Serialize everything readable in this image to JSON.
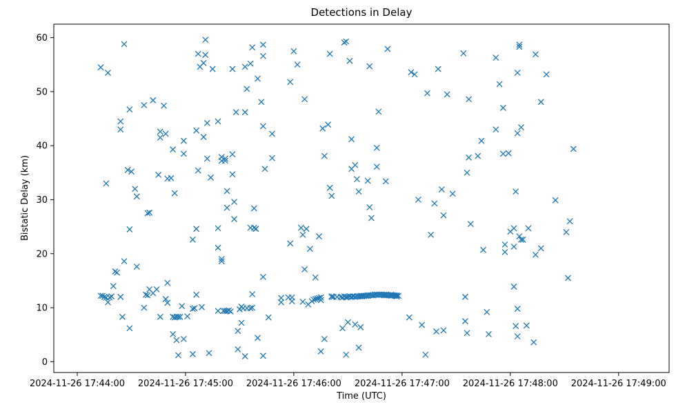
{
  "chart_data": {
    "type": "scatter",
    "title": "Detections in Delay",
    "xlabel": "Time (UTC)",
    "ylabel": "Bistatic Delay (km)",
    "x_ticks": [
      {
        "time": "17:44:00",
        "label": "2024-11-26 17:44:00"
      },
      {
        "time": "17:45:00",
        "label": "2024-11-26 17:45:00"
      },
      {
        "time": "17:46:00",
        "label": "2024-11-26 17:46:00"
      },
      {
        "time": "17:47:00",
        "label": "2024-11-26 17:47:00"
      },
      {
        "time": "17:48:00",
        "label": "2024-11-26 17:48:00"
      },
      {
        "time": "17:49:00",
        "label": "2024-11-26 17:49:00"
      }
    ],
    "xlim": [
      "17:43:47",
      "17:49:28"
    ],
    "y_ticks": [
      0,
      10,
      20,
      30,
      40,
      50,
      60
    ],
    "ylim": [
      -2.0,
      62.5
    ],
    "grid": false,
    "marker": "x",
    "color": "#1f77b4",
    "x_unit": "time of day",
    "points": [
      [
        "17:44:13",
        54.5
      ],
      [
        "17:44:13",
        12.2
      ],
      [
        "17:44:14",
        12.2
      ],
      [
        "17:44:15",
        12.0
      ],
      [
        "17:44:16",
        33.0
      ],
      [
        "17:44:16",
        11.9
      ],
      [
        "17:44:17",
        11.0
      ],
      [
        "17:44:17",
        53.5
      ],
      [
        "17:44:18",
        11.9
      ],
      [
        "17:44:19",
        12.1
      ],
      [
        "17:44:20",
        14.0
      ],
      [
        "17:44:21",
        16.7
      ],
      [
        "17:44:22",
        16.5
      ],
      [
        "17:44:24",
        43.0
      ],
      [
        "17:44:24",
        44.5
      ],
      [
        "17:44:24",
        12.0
      ],
      [
        "17:44:25",
        8.3
      ],
      [
        "17:44:26",
        18.6
      ],
      [
        "17:44:26",
        58.8
      ],
      [
        "17:44:28",
        35.5
      ],
      [
        "17:44:29",
        24.5
      ],
      [
        "17:44:29",
        46.7
      ],
      [
        "17:44:29",
        6.2
      ],
      [
        "17:44:30",
        35.2
      ],
      [
        "17:44:32",
        32.0
      ],
      [
        "17:44:33",
        17.6
      ],
      [
        "17:44:33",
        30.6
      ],
      [
        "17:44:37",
        10.0
      ],
      [
        "17:44:37",
        47.5
      ],
      [
        "17:44:38",
        12.4
      ],
      [
        "17:44:39",
        12.3
      ],
      [
        "17:44:39",
        27.5
      ],
      [
        "17:44:40",
        27.6
      ],
      [
        "17:44:40",
        13.4
      ],
      [
        "17:44:42",
        48.4
      ],
      [
        "17:44:42",
        12.7
      ],
      [
        "17:44:44",
        13.4
      ],
      [
        "17:44:45",
        34.6
      ],
      [
        "17:44:46",
        42.6
      ],
      [
        "17:44:46",
        41.5
      ],
      [
        "17:44:46",
        8.3
      ],
      [
        "17:44:48",
        47.4
      ],
      [
        "17:44:49",
        42.2
      ],
      [
        "17:44:49",
        11.6
      ],
      [
        "17:44:50",
        10.9
      ],
      [
        "17:44:50",
        14.6
      ],
      [
        "17:44:50",
        33.9
      ],
      [
        "17:44:52",
        34.0
      ],
      [
        "17:44:53",
        39.3
      ],
      [
        "17:44:53",
        5.1
      ],
      [
        "17:44:53",
        8.3
      ],
      [
        "17:44:54",
        8.2
      ],
      [
        "17:44:54",
        31.2
      ],
      [
        "17:44:55",
        4.0
      ],
      [
        "17:44:55",
        8.3
      ],
      [
        "17:44:56",
        8.3
      ],
      [
        "17:44:56",
        1.2
      ],
      [
        "17:44:57",
        8.3
      ],
      [
        "17:44:58",
        10.3
      ],
      [
        "17:44:59",
        4.2
      ],
      [
        "17:44:59",
        38.5
      ],
      [
        "17:44:59",
        40.9
      ],
      [
        "17:45:01",
        8.4
      ],
      [
        "17:45:04",
        22.6
      ],
      [
        "17:45:04",
        9.8
      ],
      [
        "17:45:04",
        1.4
      ],
      [
        "17:45:05",
        9.9
      ],
      [
        "17:45:06",
        24.6
      ],
      [
        "17:45:06",
        42.8
      ],
      [
        "17:45:06",
        12.4
      ],
      [
        "17:45:07",
        35.4
      ],
      [
        "17:45:07",
        57.0
      ],
      [
        "17:45:08",
        54.6
      ],
      [
        "17:45:09",
        10.1
      ],
      [
        "17:45:10",
        41.6
      ],
      [
        "17:45:10",
        55.3
      ],
      [
        "17:45:11",
        56.8
      ],
      [
        "17:45:11",
        59.6
      ],
      [
        "17:45:12",
        44.2
      ],
      [
        "17:45:12",
        37.6
      ],
      [
        "17:45:13",
        1.6
      ],
      [
        "17:45:14",
        34.1
      ],
      [
        "17:45:15",
        54.2
      ],
      [
        "17:45:18",
        44.5
      ],
      [
        "17:45:18",
        24.7
      ],
      [
        "17:45:18",
        21.1
      ],
      [
        "17:45:18",
        9.4
      ],
      [
        "17:45:20",
        19.0
      ],
      [
        "17:45:20",
        18.6
      ],
      [
        "17:45:20",
        37.9
      ],
      [
        "17:45:20",
        37.2
      ],
      [
        "17:45:21",
        9.4
      ],
      [
        "17:45:22",
        9.4
      ],
      [
        "17:45:22",
        37.6
      ],
      [
        "17:45:22",
        37.2
      ],
      [
        "17:45:23",
        9.4
      ],
      [
        "17:45:23",
        31.6
      ],
      [
        "17:45:23",
        28.5
      ],
      [
        "17:45:24",
        9.5
      ],
      [
        "17:45:25",
        9.3
      ],
      [
        "17:45:26",
        54.2
      ],
      [
        "17:45:26",
        38.4
      ],
      [
        "17:45:26",
        34.7
      ],
      [
        "17:45:27",
        29.6
      ],
      [
        "17:45:27",
        26.4
      ],
      [
        "17:45:28",
        46.2
      ],
      [
        "17:45:29",
        2.3
      ],
      [
        "17:45:29",
        5.7
      ],
      [
        "17:45:30",
        9.7
      ],
      [
        "17:45:31",
        10.2
      ],
      [
        "17:45:31",
        7.2
      ],
      [
        "17:45:32",
        9.9
      ],
      [
        "17:45:33",
        46.2
      ],
      [
        "17:45:33",
        54.6
      ],
      [
        "17:45:33",
        1.0
      ],
      [
        "17:45:34",
        50.5
      ],
      [
        "17:45:34",
        9.9
      ],
      [
        "17:45:36",
        55.2
      ],
      [
        "17:45:36",
        24.8
      ],
      [
        "17:45:36",
        9.9
      ],
      [
        "17:45:37",
        10.0
      ],
      [
        "17:45:37",
        12.5
      ],
      [
        "17:45:37",
        58.2
      ],
      [
        "17:45:38",
        24.8
      ],
      [
        "17:45:38",
        28.4
      ],
      [
        "17:45:39",
        24.6
      ],
      [
        "17:45:39",
        24.6
      ],
      [
        "17:45:40",
        4.4
      ],
      [
        "17:45:40",
        52.4
      ],
      [
        "17:45:42",
        48.1
      ],
      [
        "17:45:43",
        56.6
      ],
      [
        "17:45:43",
        58.7
      ],
      [
        "17:45:43",
        43.6
      ],
      [
        "17:45:43",
        15.7
      ],
      [
        "17:45:43",
        1.1
      ],
      [
        "17:45:44",
        35.7
      ],
      [
        "17:45:46",
        8.2
      ],
      [
        "17:45:48",
        42.2
      ],
      [
        "17:45:48",
        37.7
      ],
      [
        "17:45:53",
        11.0
      ],
      [
        "17:45:53",
        11.8
      ],
      [
        "17:45:57",
        11.9
      ],
      [
        "17:45:58",
        21.9
      ],
      [
        "17:45:58",
        51.8
      ],
      [
        "17:45:59",
        11.9
      ],
      [
        "17:45:59",
        11.2
      ],
      [
        "17:46:00",
        57.5
      ],
      [
        "17:46:02",
        55.0
      ],
      [
        "17:46:04",
        24.8
      ],
      [
        "17:46:05",
        11.1
      ],
      [
        "17:46:05",
        23.5
      ],
      [
        "17:46:06",
        48.6
      ],
      [
        "17:46:06",
        17.1
      ],
      [
        "17:46:07",
        24.6
      ],
      [
        "17:46:08",
        10.6
      ],
      [
        "17:46:09",
        20.9
      ],
      [
        "17:46:10",
        11.2
      ],
      [
        "17:46:11",
        11.5
      ],
      [
        "17:46:12",
        15.6
      ],
      [
        "17:46:12",
        11.6
      ],
      [
        "17:46:13",
        11.7
      ],
      [
        "17:46:14",
        23.2
      ],
      [
        "17:46:14",
        11.8
      ],
      [
        "17:46:15",
        1.9
      ],
      [
        "17:46:15",
        11.9
      ],
      [
        "17:46:15",
        11.4
      ],
      [
        "17:46:16",
        43.2
      ],
      [
        "17:46:17",
        38.1
      ],
      [
        "17:46:17",
        4.2
      ],
      [
        "17:46:19",
        43.9
      ],
      [
        "17:46:20",
        57.0
      ],
      [
        "17:46:20",
        32.2
      ],
      [
        "17:46:21",
        30.7
      ],
      [
        "17:46:21",
        12.0
      ],
      [
        "17:46:21",
        12.1
      ],
      [
        "17:46:22",
        12.0
      ],
      [
        "17:46:24",
        12.0
      ],
      [
        "17:46:26",
        12.0
      ],
      [
        "17:46:27",
        6.2
      ],
      [
        "17:46:27",
        11.9
      ],
      [
        "17:46:28",
        59.1
      ],
      [
        "17:46:28",
        12.1
      ],
      [
        "17:46:29",
        59.3
      ],
      [
        "17:46:29",
        1.3
      ],
      [
        "17:46:29",
        11.9
      ],
      [
        "17:46:29",
        12.0
      ],
      [
        "17:46:30",
        12.0
      ],
      [
        "17:46:30",
        7.3
      ],
      [
        "17:46:31",
        12.1
      ],
      [
        "17:46:31",
        55.7
      ],
      [
        "17:46:32",
        12.0
      ],
      [
        "17:46:32",
        41.2
      ],
      [
        "17:46:32",
        35.7
      ],
      [
        "17:46:33",
        12.1
      ],
      [
        "17:46:33",
        12.1
      ],
      [
        "17:46:34",
        36.4
      ],
      [
        "17:46:34",
        12.0
      ],
      [
        "17:46:34",
        6.9
      ],
      [
        "17:46:35",
        12.1
      ],
      [
        "17:46:35",
        33.8
      ],
      [
        "17:46:35",
        12.1
      ],
      [
        "17:46:36",
        12.1
      ],
      [
        "17:46:36",
        31.5
      ],
      [
        "17:46:36",
        2.6
      ],
      [
        "17:46:37",
        12.2
      ],
      [
        "17:46:37",
        12.1
      ],
      [
        "17:46:37",
        6.4
      ],
      [
        "17:46:38",
        12.2
      ],
      [
        "17:46:38",
        12.1
      ],
      [
        "17:46:39",
        12.2
      ],
      [
        "17:46:39",
        12.2
      ],
      [
        "17:46:40",
        12.2
      ],
      [
        "17:46:40",
        12.2
      ],
      [
        "17:46:41",
        12.3
      ],
      [
        "17:46:41",
        12.2
      ],
      [
        "17:46:41",
        33.5
      ],
      [
        "17:46:42",
        12.3
      ],
      [
        "17:46:42",
        54.7
      ],
      [
        "17:46:42",
        28.6
      ],
      [
        "17:46:43",
        12.3
      ],
      [
        "17:46:43",
        26.6
      ],
      [
        "17:46:43",
        12.3
      ],
      [
        "17:46:44",
        12.3
      ],
      [
        "17:46:44",
        12.3
      ],
      [
        "17:46:45",
        12.4
      ],
      [
        "17:46:45",
        12.4
      ],
      [
        "17:46:46",
        12.4
      ],
      [
        "17:46:46",
        12.4
      ],
      [
        "17:46:46",
        36.1
      ],
      [
        "17:46:46",
        39.6
      ],
      [
        "17:46:47",
        46.3
      ],
      [
        "17:46:47",
        12.4
      ],
      [
        "17:46:47",
        12.4
      ],
      [
        "17:46:48",
        12.4
      ],
      [
        "17:46:48",
        12.4
      ],
      [
        "17:46:49",
        12.4
      ],
      [
        "17:46:49",
        12.4
      ],
      [
        "17:46:50",
        12.4
      ],
      [
        "17:46:50",
        12.3
      ],
      [
        "17:46:51",
        33.4
      ],
      [
        "17:46:51",
        12.4
      ],
      [
        "17:46:51",
        12.3
      ],
      [
        "17:46:52",
        57.9
      ],
      [
        "17:46:52",
        12.3
      ],
      [
        "17:46:52",
        12.3
      ],
      [
        "17:46:53",
        12.3
      ],
      [
        "17:46:54",
        12.4
      ],
      [
        "17:46:54",
        12.2
      ],
      [
        "17:46:55",
        12.3
      ],
      [
        "17:46:55",
        12.3
      ],
      [
        "17:46:56",
        12.3
      ],
      [
        "17:46:56",
        12.2
      ],
      [
        "17:46:57",
        12.3
      ],
      [
        "17:46:57",
        12.2
      ],
      [
        "17:46:57",
        12.1
      ],
      [
        "17:46:58",
        12.2
      ],
      [
        "17:47:04",
        8.2
      ],
      [
        "17:47:05",
        53.6
      ],
      [
        "17:47:07",
        53.2
      ],
      [
        "17:47:09",
        30.0
      ],
      [
        "17:47:11",
        6.8
      ],
      [
        "17:47:13",
        1.3
      ],
      [
        "17:47:14",
        49.7
      ],
      [
        "17:47:16",
        23.5
      ],
      [
        "17:47:18",
        29.3
      ],
      [
        "17:47:19",
        5.6
      ],
      [
        "17:47:20",
        54.2
      ],
      [
        "17:47:22",
        31.9
      ],
      [
        "17:47:23",
        5.8
      ],
      [
        "17:47:23",
        27.1
      ],
      [
        "17:47:25",
        49.5
      ],
      [
        "17:47:28",
        31.1
      ],
      [
        "17:47:34",
        57.1
      ],
      [
        "17:47:35",
        12.0
      ],
      [
        "17:47:35",
        7.5
      ],
      [
        "17:47:36",
        5.3
      ],
      [
        "17:47:36",
        35.0
      ],
      [
        "17:47:37",
        48.6
      ],
      [
        "17:47:37",
        37.8
      ],
      [
        "17:47:38",
        25.5
      ],
      [
        "17:47:42",
        38.1
      ],
      [
        "17:47:44",
        40.9
      ],
      [
        "17:47:45",
        20.7
      ],
      [
        "17:47:47",
        9.2
      ],
      [
        "17:47:48",
        5.1
      ],
      [
        "17:47:52",
        43.0
      ],
      [
        "17:47:52",
        56.3
      ],
      [
        "17:47:54",
        51.4
      ],
      [
        "17:47:56",
        47.0
      ],
      [
        "17:47:56",
        38.5
      ],
      [
        "17:47:57",
        21.7
      ],
      [
        "17:47:57",
        20.3
      ],
      [
        "17:47:59",
        38.6
      ],
      [
        "17:48:00",
        24.1
      ],
      [
        "17:48:02",
        24.7
      ],
      [
        "17:48:02",
        21.3
      ],
      [
        "17:48:02",
        13.9
      ],
      [
        "17:48:03",
        6.6
      ],
      [
        "17:48:03",
        31.5
      ],
      [
        "17:48:04",
        53.5
      ],
      [
        "17:48:04",
        42.3
      ],
      [
        "17:48:04",
        9.8
      ],
      [
        "17:48:04",
        4.7
      ],
      [
        "17:48:05",
        58.3
      ],
      [
        "17:48:05",
        58.7
      ],
      [
        "17:48:05",
        23.2
      ],
      [
        "17:48:06",
        43.4
      ],
      [
        "17:48:06",
        22.6
      ],
      [
        "17:48:07",
        22.6
      ],
      [
        "17:48:09",
        6.7
      ],
      [
        "17:48:10",
        24.7
      ],
      [
        "17:48:13",
        3.6
      ],
      [
        "17:48:14",
        56.9
      ],
      [
        "17:48:14",
        19.8
      ],
      [
        "17:48:17",
        21.0
      ],
      [
        "17:48:17",
        48.1
      ],
      [
        "17:48:20",
        53.2
      ],
      [
        "17:48:25",
        29.9
      ],
      [
        "17:48:31",
        24.0
      ],
      [
        "17:48:32",
        15.5
      ],
      [
        "17:48:33",
        26.0
      ],
      [
        "17:48:35",
        39.4
      ]
    ]
  }
}
